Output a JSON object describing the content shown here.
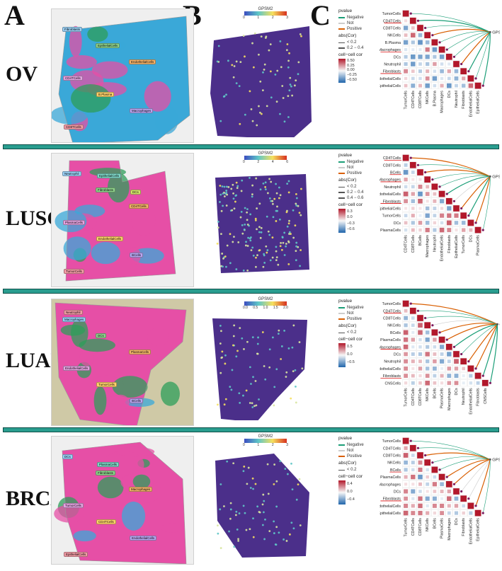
{
  "panels": {
    "a": "A",
    "b": "B",
    "c": "C"
  },
  "colors": {
    "divider": "#2a9d8f",
    "negative": "#1b9e77",
    "positive": "#d95f02",
    "notsig": "#cccccc",
    "tissue_pink": "#e64fa6",
    "tissue_blue": "#3aa8d8",
    "tissue_green": "#2e9e5a",
    "spatial_bg": "#4b2f8a"
  },
  "legend": {
    "pvalue_title": "pvalue",
    "negative": "Negative",
    "not": "Not",
    "positive": "Positive",
    "abscor_title": "abs(Cor)",
    "cellcor_title": "cell−cell cor"
  },
  "gpsm2_label": "GPSM2",
  "rows": [
    {
      "label": "OV",
      "abscor": [
        "< 0.2",
        "0.2 − 0.4"
      ],
      "cellcor_ticks": [
        "0.50",
        "0.25",
        "0.00",
        "−0.25",
        "−0.50"
      ],
      "colorbar_title": "GPSM2",
      "colorbar_ticks": [
        "0",
        "1",
        "2",
        "3"
      ],
      "cells": [
        "TumorCells",
        "CD4TCells",
        "CD8TCells",
        "NKCells",
        "B.Plasma",
        "Macrophages",
        "DCs",
        "Neutrophil",
        "Fibroblasts",
        "EndothelialCells",
        "EpithelialCells"
      ],
      "underlined": [
        "CD4TCells",
        "Macrophages",
        "Fibroblasts"
      ],
      "tags": [
        "Fibroblasts",
        "EpithelialCells",
        "EndothelialCells",
        "CD4TCells",
        "B.Plasma",
        "Macrophages",
        "CD8TCells"
      ]
    },
    {
      "label": "LUSC",
      "abscor": [
        "< 0.2",
        "0.2 − 0.4",
        "0.4 − 0.6"
      ],
      "cellcor_ticks": [
        "0.3",
        "0.0",
        "−0.3",
        "−0.6"
      ],
      "colorbar_title": "GPSM2",
      "colorbar_ticks": [
        "0",
        "2",
        "4",
        "6"
      ],
      "cells": [
        "CD4TCells",
        "CD8TCells",
        "BCells",
        "Macrophages",
        "Neutrophil",
        "EndothelialCells",
        "Fibroblasts",
        "EpithelialCells",
        "TumorCells",
        "DCs",
        "PlasmaCells"
      ],
      "underlined": [
        "CD4TCells",
        "BCells",
        "Macrophages",
        "Fibroblasts"
      ],
      "tags": [
        "Neutrophil",
        "Fibroblasts",
        "CD4TCells",
        "PlasmaCells",
        "EndothelialCells",
        "BCells",
        "TumorCells",
        "EpithelialCells",
        "DCs"
      ]
    },
    {
      "label": "LUAD",
      "abscor": [
        "< 0.2"
      ],
      "cellcor_ticks": [
        "0.5",
        "0.0",
        "−0.5"
      ],
      "colorbar_title": "GPSM2",
      "colorbar_ticks": [
        "0.0",
        "0.5",
        "1.0",
        "1.5",
        "2.0"
      ],
      "cells": [
        "TumorCells",
        "CD4TCells",
        "CD8TCells",
        "NKCells",
        "BCells",
        "PlasmaCells",
        "Macrophages",
        "DCs",
        "Neutrophil",
        "EndothelialCells",
        "Fibroblasts",
        "CNSCells"
      ],
      "underlined": [
        "CD4TCells",
        "Macrophages",
        "Fibroblasts"
      ],
      "tags": [
        "Macrophages",
        "DCs",
        "PlasmaCells",
        "EndothelialCells",
        "TumorCells",
        "BCells",
        "Neutrophil"
      ]
    },
    {
      "label": "BRCA",
      "abscor": [
        "< 0.2"
      ],
      "cellcor_ticks": [
        "0.4",
        "0.0",
        "−0.4"
      ],
      "colorbar_title": "GPSM2",
      "colorbar_ticks": [
        "0",
        "1",
        "2",
        "3"
      ],
      "cells": [
        "TumorCells",
        "CD4TCells",
        "CD8TCells",
        "NKCells",
        "BCells",
        "PlasmaCells",
        "Macrophages",
        "DCs",
        "Fibroblasts",
        "EndothelialCells",
        "EpithelialCells"
      ],
      "underlined": [
        "BCells",
        "Fibroblasts"
      ],
      "tags": [
        "DCs",
        "Fibroblasts",
        "Macrophages",
        "TumorCells",
        "CD4TCells",
        "EndothelialCells",
        "EpithelialCells",
        "PlasmaCells"
      ]
    }
  ]
}
